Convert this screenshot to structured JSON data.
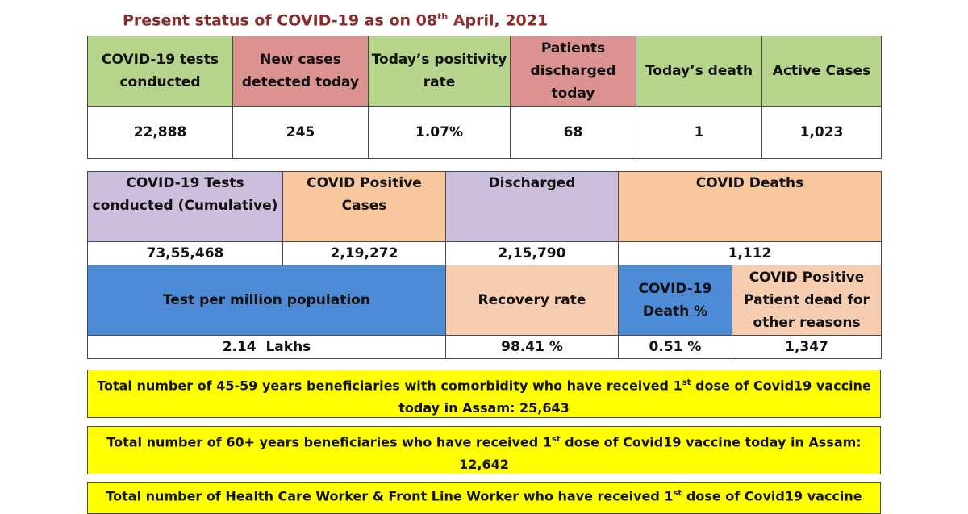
{
  "heading": {
    "prefix": "Present status of COVID-19 as on 08",
    "sup": "th",
    "suffix": " April, 2021"
  },
  "daily": {
    "headers": [
      "COVID-19 tests conducted",
      "New cases detected today",
      "Today’s positivity rate",
      "Patients discharged today",
      "Today’s death",
      "Active Cases"
    ],
    "values": [
      "22,888",
      "245",
      "1.07%",
      "68",
      "1",
      "1,023"
    ]
  },
  "cumulative": {
    "headers": [
      "COVID-19 Tests conducted (Cumulative)",
      "COVID Positive Cases",
      "Discharged",
      "COVID Deaths"
    ],
    "values": [
      "73,55,468",
      "2,19,272",
      "2,15,790",
      "1,112"
    ]
  },
  "rates": {
    "headers": [
      "Test per million population",
      "Recovery rate",
      "COVID-19 Death %",
      "COVID Positive Patient dead for other reasons"
    ],
    "values": [
      "2.14  Lakhs",
      "98.41 %",
      "0.51 %",
      "1,347"
    ]
  },
  "vaccine": {
    "line1": {
      "pre": "Total number of 45-59 years beneficiaries with comorbidity who have received 1",
      "sup": "st",
      "post": " dose of Covid19 vaccine today in Assam: 25,643"
    },
    "line2": {
      "pre": "Total number of 60+ years beneficiaries who have received 1",
      "sup": "st",
      "post": " dose of Covid19 vaccine today in Assam: 12,642"
    },
    "line3": {
      "pre": "Total number of Health Care Worker & Front Line Worker who have received 1",
      "sup": "st",
      "post": " dose of Covid19 vaccine"
    }
  }
}
